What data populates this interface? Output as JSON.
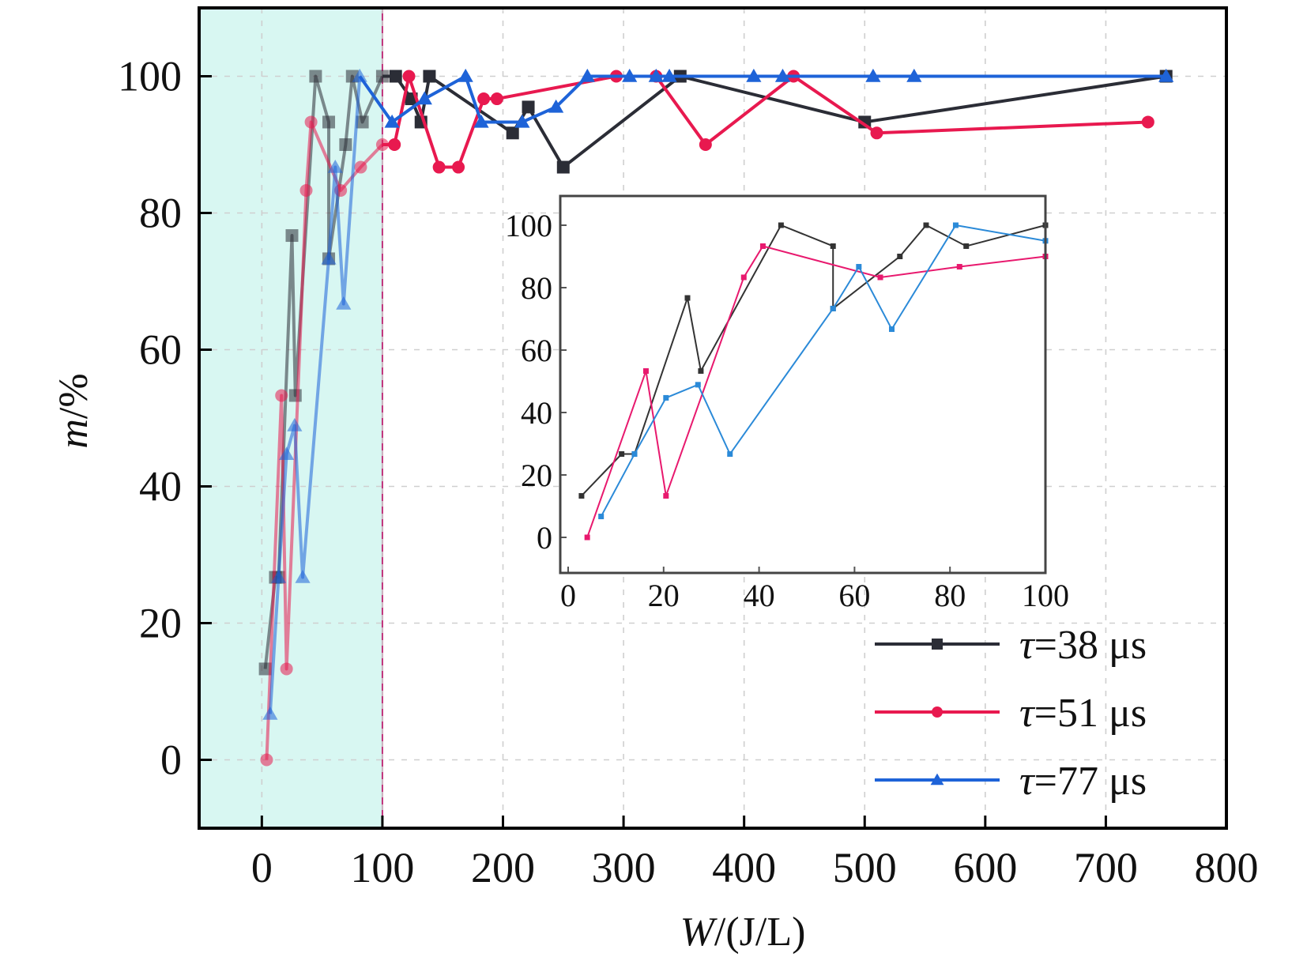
{
  "chart_data": {
    "type": "line",
    "title": "",
    "xlabel": "W/(J/L)",
    "ylabel": "m/%",
    "xlabel_italic_part": "W",
    "xlabel_rest": "/(J/L)",
    "ylabel_italic_part": "m",
    "ylabel_rest": "/%",
    "xlim": [
      -52,
      800
    ],
    "ylim": [
      -10,
      110
    ],
    "xticks": [
      0,
      100,
      200,
      300,
      400,
      500,
      600,
      700,
      800
    ],
    "yticks": [
      0,
      20,
      40,
      60,
      80,
      100
    ],
    "xtick_labels": [
      "0",
      "100",
      "200",
      "300",
      "400",
      "500",
      "600",
      "700",
      "800"
    ],
    "ytick_labels": [
      "0",
      "20",
      "40",
      "60",
      "80",
      "100"
    ],
    "grid": true,
    "shaded_region": {
      "x_from": -52,
      "x_to": 100,
      "color": "#d8f7f2",
      "boundary_color": "#c0307a"
    },
    "legend": {
      "position": "bottom-right",
      "entries": [
        "τ=38 μs",
        "τ=51 μs",
        "τ=77 μs"
      ]
    },
    "series": [
      {
        "name": "τ=38 μs",
        "color": "#2b2d36",
        "marker": "square",
        "points": [
          [
            2.8,
            13.3
          ],
          [
            11.2,
            26.7
          ],
          [
            13.9,
            26.7
          ],
          [
            25,
            76.7
          ],
          [
            27.8,
            53.3
          ],
          [
            44.6,
            100
          ],
          [
            55.5,
            93.3
          ],
          [
            55.5,
            73.3
          ],
          [
            69.5,
            90
          ],
          [
            75,
            100
          ],
          [
            83.4,
            93.3
          ],
          [
            100,
            100
          ],
          [
            111,
            100
          ],
          [
            124,
            96.7
          ],
          [
            132,
            93.3
          ],
          [
            139,
            100
          ],
          [
            208,
            91.7
          ],
          [
            221,
            95.5
          ],
          [
            250,
            86.7
          ],
          [
            347,
            100
          ],
          [
            500,
            93.3
          ],
          [
            750,
            100
          ]
        ]
      },
      {
        "name": "τ=51 μs",
        "color": "#e8194f",
        "marker": "circle",
        "points": [
          [
            4,
            0
          ],
          [
            16.3,
            53.3
          ],
          [
            20.5,
            13.3
          ],
          [
            36.8,
            83.3
          ],
          [
            40.8,
            93.3
          ],
          [
            65.4,
            83.3
          ],
          [
            82,
            86.7
          ],
          [
            100,
            90
          ],
          [
            110,
            90
          ],
          [
            122,
            100
          ],
          [
            147,
            86.7
          ],
          [
            163,
            86.7
          ],
          [
            184,
            96.7
          ],
          [
            195,
            96.7
          ],
          [
            294,
            100
          ],
          [
            327,
            100
          ],
          [
            368,
            90
          ],
          [
            441,
            100
          ],
          [
            510,
            91.7
          ],
          [
            735,
            93.3
          ]
        ]
      },
      {
        "name": "τ=77 μs",
        "color": "#1e63d8",
        "marker": "triangle",
        "points": [
          [
            6.9,
            6.7
          ],
          [
            13.9,
            26.7
          ],
          [
            20.5,
            44.7
          ],
          [
            27.2,
            48.9
          ],
          [
            33.9,
            26.7
          ],
          [
            55.5,
            73.3
          ],
          [
            60.9,
            86.7
          ],
          [
            67.8,
            66.7
          ],
          [
            81.2,
            100
          ],
          [
            108,
            93.3
          ],
          [
            135,
            96.7
          ],
          [
            169,
            100
          ],
          [
            182,
            93.3
          ],
          [
            216,
            93.3
          ],
          [
            244,
            95.5
          ],
          [
            270,
            100
          ],
          [
            305,
            100
          ],
          [
            327,
            100
          ],
          [
            338,
            100
          ],
          [
            408,
            100
          ],
          [
            432,
            100
          ],
          [
            507,
            100
          ],
          [
            541,
            100
          ],
          [
            750,
            100
          ]
        ]
      }
    ],
    "inset": {
      "type": "line",
      "xlim": [
        0,
        100
      ],
      "ylim": [
        -10,
        110
      ],
      "xticks": [
        0,
        20,
        40,
        60,
        80,
        100
      ],
      "yticks": [
        0,
        20,
        40,
        60,
        80,
        100
      ],
      "xtick_labels": [
        "0",
        "20",
        "40",
        "60",
        "80",
        "100"
      ],
      "ytick_labels": [
        "0",
        "20",
        "40",
        "60",
        "80",
        "100"
      ],
      "series": [
        {
          "name": "τ=38 μs",
          "color": "#333333",
          "points": [
            [
              2.8,
              13.3
            ],
            [
              11.2,
              26.7
            ],
            [
              13.9,
              26.7
            ],
            [
              25,
              76.7
            ],
            [
              27.8,
              53.3
            ],
            [
              44.6,
              100
            ],
            [
              55.5,
              93.3
            ],
            [
              55.5,
              73.3
            ],
            [
              69.5,
              90
            ],
            [
              75,
              100
            ],
            [
              83.4,
              93.3
            ],
            [
              100,
              100
            ]
          ]
        },
        {
          "name": "τ=51 μs",
          "color": "#e8196e",
          "points": [
            [
              4,
              0
            ],
            [
              16.3,
              53.3
            ],
            [
              20.5,
              13.3
            ],
            [
              36.8,
              83.3
            ],
            [
              40.8,
              93.3
            ],
            [
              65.4,
              83.3
            ],
            [
              82,
              86.7
            ],
            [
              100,
              90
            ]
          ]
        },
        {
          "name": "τ=77 μs",
          "color": "#2b8ad8",
          "points": [
            [
              6.9,
              6.7
            ],
            [
              13.9,
              26.7
            ],
            [
              20.5,
              44.7
            ],
            [
              27.2,
              48.9
            ],
            [
              33.9,
              26.7
            ],
            [
              55.5,
              73.3
            ],
            [
              60.9,
              86.7
            ],
            [
              67.8,
              66.7
            ],
            [
              81.2,
              100
            ],
            [
              100,
              95
            ]
          ]
        }
      ]
    }
  }
}
